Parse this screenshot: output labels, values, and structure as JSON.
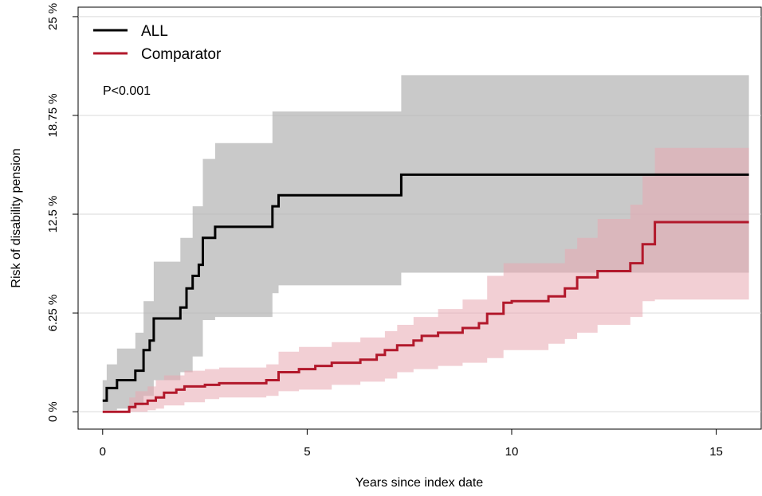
{
  "chart_data": {
    "type": "line",
    "subtype": "cumulative-incidence-step",
    "xlabel": "Years since index date",
    "ylabel": "Risk of disability pension",
    "xlim": [
      -0.6,
      16.1
    ],
    "ylim": [
      -1.1,
      25.6
    ],
    "xticks": [
      0,
      5,
      10,
      15
    ],
    "xtick_labels": [
      "0",
      "5",
      "10",
      "15"
    ],
    "yticks": [
      0,
      6.25,
      12.5,
      18.75,
      25
    ],
    "ytick_labels": [
      "0 %",
      "6.25 %",
      "12.5 %",
      "18.75 %",
      "25 %"
    ],
    "grid": "horizontal",
    "legend_position": "top-left",
    "annotation": "P<0.001",
    "series": [
      {
        "name": "ALL",
        "color": "#000000",
        "band_color": "#b4b4b4",
        "steps": [
          [
            0,
            0.7
          ],
          [
            0.1,
            1.5
          ],
          [
            0.35,
            2.0
          ],
          [
            0.8,
            2.6
          ],
          [
            1.0,
            3.9
          ],
          [
            1.15,
            4.5
          ],
          [
            1.25,
            5.9
          ],
          [
            1.9,
            6.6
          ],
          [
            2.05,
            7.8
          ],
          [
            2.2,
            8.6
          ],
          [
            2.35,
            9.3
          ],
          [
            2.45,
            11.0
          ],
          [
            2.75,
            11.7
          ],
          [
            4.15,
            13.0
          ],
          [
            4.3,
            13.7
          ],
          [
            7.3,
            15.0
          ],
          [
            15.8,
            15.0
          ]
        ],
        "ci": [
          [
            0,
            0.1,
            2.0
          ],
          [
            0.1,
            0.1,
            3.0
          ],
          [
            0.35,
            0.2,
            4.0
          ],
          [
            0.8,
            0.4,
            5.0
          ],
          [
            1.0,
            1.0,
            7.0
          ],
          [
            1.25,
            2.0,
            9.5
          ],
          [
            1.9,
            2.5,
            11.0
          ],
          [
            2.2,
            3.5,
            13.0
          ],
          [
            2.45,
            5.8,
            16.0
          ],
          [
            2.75,
            6.0,
            17.0
          ],
          [
            4.15,
            7.5,
            19.0
          ],
          [
            4.3,
            8.0,
            19.0
          ],
          [
            7.3,
            8.8,
            21.3
          ],
          [
            15.8,
            8.8,
            21.3
          ]
        ]
      },
      {
        "name": "Comparator",
        "color": "#b2182b",
        "band_color": "#e8a8b0",
        "steps": [
          [
            0,
            0
          ],
          [
            0.65,
            0.3
          ],
          [
            0.8,
            0.5
          ],
          [
            1.1,
            0.7
          ],
          [
            1.3,
            0.9
          ],
          [
            1.5,
            1.2
          ],
          [
            1.8,
            1.4
          ],
          [
            2.0,
            1.6
          ],
          [
            2.5,
            1.7
          ],
          [
            2.85,
            1.8
          ],
          [
            4.0,
            2.0
          ],
          [
            4.3,
            2.5
          ],
          [
            4.8,
            2.7
          ],
          [
            5.2,
            2.9
          ],
          [
            5.6,
            3.1
          ],
          [
            6.3,
            3.3
          ],
          [
            6.7,
            3.6
          ],
          [
            6.9,
            3.9
          ],
          [
            7.2,
            4.2
          ],
          [
            7.6,
            4.5
          ],
          [
            7.8,
            4.8
          ],
          [
            8.2,
            5.0
          ],
          [
            8.8,
            5.3
          ],
          [
            9.2,
            5.6
          ],
          [
            9.4,
            6.2
          ],
          [
            9.8,
            6.9
          ],
          [
            10.0,
            7.0
          ],
          [
            10.9,
            7.3
          ],
          [
            11.3,
            7.8
          ],
          [
            11.6,
            8.5
          ],
          [
            12.1,
            8.9
          ],
          [
            12.9,
            9.4
          ],
          [
            13.2,
            10.6
          ],
          [
            13.5,
            12.0
          ],
          [
            15.8,
            12.0
          ]
        ],
        "ci": [
          [
            0,
            0,
            0
          ],
          [
            0.65,
            0.0,
            0.9
          ],
          [
            0.8,
            0.0,
            1.3
          ],
          [
            1.1,
            0.1,
            1.6
          ],
          [
            1.3,
            0.2,
            2.0
          ],
          [
            1.5,
            0.4,
            2.3
          ],
          [
            2.0,
            0.6,
            2.6
          ],
          [
            2.5,
            0.8,
            2.7
          ],
          [
            2.85,
            0.9,
            2.8
          ],
          [
            4.0,
            1.0,
            3.0
          ],
          [
            4.3,
            1.3,
            3.8
          ],
          [
            4.8,
            1.4,
            4.1
          ],
          [
            5.6,
            1.7,
            4.4
          ],
          [
            6.3,
            1.9,
            4.7
          ],
          [
            6.9,
            2.1,
            5.1
          ],
          [
            7.2,
            2.5,
            5.5
          ],
          [
            7.6,
            2.7,
            6.0
          ],
          [
            8.2,
            2.9,
            6.5
          ],
          [
            8.8,
            3.1,
            7.1
          ],
          [
            9.4,
            3.4,
            8.6
          ],
          [
            9.8,
            3.9,
            9.4
          ],
          [
            10.9,
            4.3,
            9.4
          ],
          [
            11.3,
            4.6,
            10.3
          ],
          [
            11.6,
            5.0,
            11.0
          ],
          [
            12.1,
            5.5,
            12.2
          ],
          [
            12.9,
            6.0,
            13.1
          ],
          [
            13.2,
            7.0,
            14.9
          ],
          [
            13.5,
            7.1,
            16.7
          ],
          [
            15.8,
            7.1,
            16.7
          ]
        ]
      }
    ]
  }
}
